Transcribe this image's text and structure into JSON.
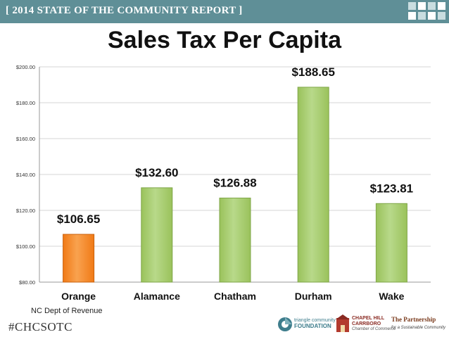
{
  "banner": {
    "text": "[ 2014 STATE OF THE COMMUNITY REPORT ]"
  },
  "colors": {
    "banner": "#5f8f97",
    "bar_default": "#9ac25b",
    "bar_highlight": "#f07a16",
    "gridline": "#d6d6d6"
  },
  "chart_data": {
    "type": "bar",
    "title": "Sales Tax Per Capita",
    "categories": [
      "Orange",
      "Alamance",
      "Chatham",
      "Durham",
      "Wake"
    ],
    "values": [
      106.65,
      132.6,
      126.88,
      188.65,
      123.81
    ],
    "data_labels": [
      "$106.65",
      "$132.60",
      "$126.88",
      "$188.65",
      "$123.81"
    ],
    "highlight_category": "Orange",
    "ylim": [
      80,
      200
    ],
    "yticks": [
      80,
      100,
      120,
      140,
      160,
      180,
      200
    ],
    "ytick_labels": [
      "$80.00",
      "$100.00",
      "$120.00",
      "$140.00",
      "$160.00",
      "$180.00",
      "$200.00"
    ],
    "grid": true,
    "xlabel": "",
    "ylabel": ""
  },
  "source": "NC Dept of Revenue",
  "footer": {
    "hashtag": "#CHCSOTC",
    "logos": {
      "tcf": [
        "triangle community",
        "FOUNDATION"
      ],
      "chc": [
        "CHAPEL HILL",
        "CARRBORO",
        "Chamber of Commerce"
      ],
      "pfsc": [
        "The Partnership",
        "for a Sustainable Community"
      ]
    }
  }
}
